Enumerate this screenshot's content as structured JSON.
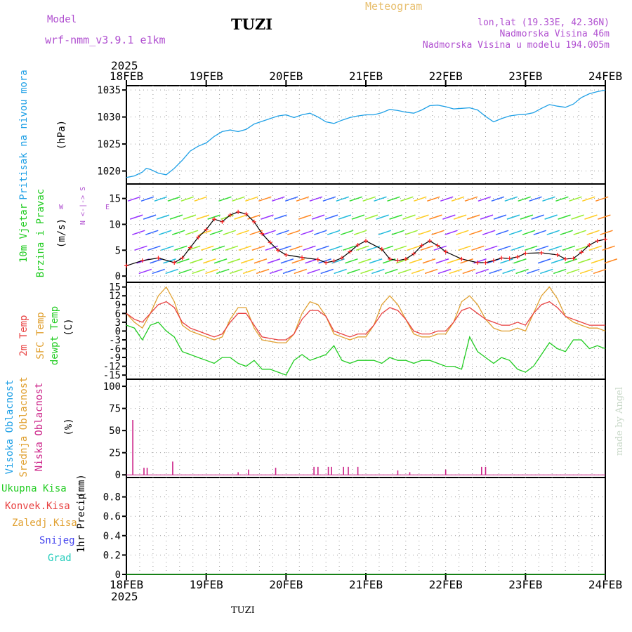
{
  "header": {
    "model_label": "Model",
    "model_name": "wrf-nmm_v3.9.1  e1km",
    "station_title": "TUZI",
    "product_title": "Meteogram",
    "coords": "lon,lat (19.33E, 42.36N)",
    "elevation": "Nadmorska Visina 46m",
    "model_elevation": "Nadmorska Visina u modelu 194.005m",
    "footer_station": "TUZI",
    "credit": "made by Angel"
  },
  "colors": {
    "pressure": "#1fa0e6",
    "temp2m": "#e84040",
    "sfc_temp": "#e0a030",
    "dewpoint": "#22cc22",
    "cloud_low": "#cc2288",
    "wind_cross": "#ff2020",
    "wind_line": "#000000",
    "label_magenta": "#b04fd0"
  },
  "chart_data": [
    {
      "type": "line",
      "panel": "pressure",
      "ylabel_rot": "Pritisak na nivou mora",
      "unit": "(hPa)",
      "x_year": "2025",
      "x_ticks": [
        "18FEB",
        "19FEB",
        "20FEB",
        "21FEB",
        "22FEB",
        "23FEB",
        "24FEB"
      ],
      "y_ticks": [
        1020,
        1025,
        1030,
        1035
      ],
      "ylim": [
        1017.6,
        1035.8
      ],
      "x": [
        0,
        0.1,
        0.2,
        0.25,
        0.3,
        0.4,
        0.5,
        0.6,
        0.7,
        0.8,
        0.9,
        1.0,
        1.1,
        1.2,
        1.3,
        1.4,
        1.5,
        1.6,
        1.7,
        1.8,
        1.9,
        2.0,
        2.1,
        2.2,
        2.3,
        2.4,
        2.5,
        2.6,
        2.7,
        2.8,
        2.9,
        3.0,
        3.1,
        3.2,
        3.3,
        3.4,
        3.5,
        3.6,
        3.7,
        3.8,
        3.9,
        4.0,
        4.1,
        4.2,
        4.3,
        4.4,
        4.5,
        4.6,
        4.7,
        4.8,
        4.9,
        5.0,
        5.1,
        5.2,
        5.3,
        5.4,
        5.5,
        5.6,
        5.7,
        5.8,
        5.9,
        6.0
      ],
      "series": [
        {
          "name": "Pritisak na nivou mora",
          "values": [
            1018.8,
            1019.1,
            1019.8,
            1020.5,
            1020.3,
            1019.6,
            1019.3,
            1020.5,
            1022.0,
            1023.7,
            1024.6,
            1025.2,
            1026.4,
            1027.3,
            1027.6,
            1027.3,
            1027.7,
            1028.7,
            1029.2,
            1029.7,
            1030.2,
            1030.4,
            1029.9,
            1030.4,
            1030.7,
            1030.0,
            1029.1,
            1028.8,
            1029.4,
            1029.9,
            1030.2,
            1030.4,
            1030.4,
            1030.8,
            1031.4,
            1031.2,
            1030.9,
            1030.7,
            1031.3,
            1032.1,
            1032.2,
            1031.9,
            1031.5,
            1031.6,
            1031.7,
            1031.3,
            1030.1,
            1029.1,
            1029.7,
            1030.2,
            1030.4,
            1030.5,
            1030.8,
            1031.6,
            1032.3,
            1032.0,
            1031.8,
            1032.4,
            1033.6,
            1034.3,
            1034.7,
            1035.0
          ]
        }
      ]
    },
    {
      "type": "line",
      "panel": "wind",
      "ylabel_rot_1": "10m Vjetar",
      "ylabel_rot_2": "Brzina i Pravac",
      "unit": "(m/s)",
      "compass_text": "N <-|-> S",
      "compass_w": "W",
      "compass_e": "E",
      "y_ticks": [
        0,
        5,
        10,
        15
      ],
      "ylim": [
        -1.2,
        17.8
      ],
      "x": [
        0,
        0.2,
        0.4,
        0.6,
        0.7,
        0.8,
        0.9,
        1.0,
        1.1,
        1.2,
        1.3,
        1.4,
        1.5,
        1.6,
        1.7,
        1.8,
        1.9,
        2.0,
        2.2,
        2.4,
        2.5,
        2.6,
        2.7,
        2.8,
        2.9,
        3.0,
        3.2,
        3.3,
        3.4,
        3.5,
        3.6,
        3.7,
        3.8,
        3.9,
        4.0,
        4.2,
        4.4,
        4.5,
        4.6,
        4.7,
        4.8,
        4.9,
        5.0,
        5.2,
        5.4,
        5.5,
        5.6,
        5.7,
        5.8,
        5.9,
        6.0
      ],
      "series": [
        {
          "name": "brzina",
          "values": [
            2.0,
            3.0,
            3.5,
            2.6,
            3.5,
            5.5,
            7.5,
            9.0,
            11.0,
            10.5,
            11.8,
            12.4,
            12.0,
            10.5,
            8.2,
            6.5,
            5.0,
            4.1,
            3.6,
            3.2,
            2.6,
            2.9,
            3.5,
            4.7,
            6.0,
            6.8,
            5.2,
            3.3,
            3.0,
            3.3,
            4.3,
            5.9,
            6.8,
            5.9,
            4.7,
            3.3,
            2.6,
            2.6,
            3.0,
            3.5,
            3.4,
            3.7,
            4.4,
            4.5,
            4.1,
            3.3,
            3.4,
            4.6,
            6.0,
            6.8,
            7.1
          ]
        }
      ]
    },
    {
      "type": "line",
      "panel": "temperature",
      "ylabel_rot_1": "2m Temp",
      "ylabel_rot_2": "SFC Temp",
      "ylabel_rot_3": "dewpt Temp",
      "unit": "(C)",
      "y_ticks": [
        -15,
        -12,
        -9,
        -6,
        -3,
        0,
        3,
        6,
        9,
        12,
        15
      ],
      "ylim": [
        -16.4,
        16.6
      ],
      "x": [
        0,
        0.1,
        0.2,
        0.3,
        0.4,
        0.5,
        0.6,
        0.7,
        0.8,
        0.9,
        1.0,
        1.1,
        1.2,
        1.3,
        1.4,
        1.5,
        1.6,
        1.7,
        1.8,
        1.9,
        2.0,
        2.1,
        2.2,
        2.3,
        2.4,
        2.5,
        2.6,
        2.7,
        2.8,
        2.9,
        3.0,
        3.1,
        3.2,
        3.3,
        3.4,
        3.5,
        3.6,
        3.7,
        3.8,
        3.9,
        4.0,
        4.1,
        4.2,
        4.3,
        4.4,
        4.5,
        4.6,
        4.7,
        4.8,
        4.9,
        5.0,
        5.1,
        5.2,
        5.3,
        5.4,
        5.5,
        5.6,
        5.7,
        5.8,
        5.9,
        6.0
      ],
      "series": [
        {
          "name": "2m Temp",
          "values": [
            6,
            4,
            3,
            6,
            9,
            10,
            8,
            3,
            1,
            0,
            -1,
            -2,
            -1,
            3,
            6,
            6,
            2,
            -2,
            -2.5,
            -3,
            -3,
            -1,
            4,
            7,
            7,
            5,
            0,
            -1,
            -2,
            -1,
            -1,
            2,
            6,
            8,
            7,
            4,
            0,
            -1,
            -1,
            0,
            0,
            3,
            7,
            8,
            6,
            4,
            3,
            2,
            2,
            3,
            2,
            6,
            9,
            10,
            8,
            5,
            4,
            3,
            2,
            2,
            2
          ]
        },
        {
          "name": "SFC Temp",
          "values": [
            6,
            3,
            1,
            6,
            12,
            15,
            10,
            2,
            0,
            -1,
            -2,
            -3,
            -2,
            4,
            8,
            8,
            1,
            -3,
            -3.5,
            -4,
            -4,
            -1,
            6,
            10,
            9,
            5,
            -1,
            -2,
            -3,
            -2,
            -2,
            2,
            9,
            12,
            9,
            4,
            -1,
            -2,
            -2,
            -1,
            -1,
            3,
            10,
            12,
            9,
            4,
            1,
            0,
            0,
            1,
            0,
            6,
            12,
            15,
            11,
            5,
            3,
            2,
            1,
            1,
            0
          ]
        },
        {
          "name": "dewpt Temp",
          "values": [
            2,
            1,
            -3,
            2,
            3,
            0,
            -2,
            -7,
            -8,
            -9,
            -10,
            -11,
            -9,
            -9,
            -11,
            -12,
            -10,
            -13,
            -13,
            -14,
            -15,
            -10,
            -8,
            -10,
            -9,
            -8,
            -5,
            -10,
            -11,
            -10,
            -10,
            -10,
            -11,
            -9,
            -10,
            -10,
            -11,
            -10,
            -10,
            -11,
            -12,
            -12,
            -13,
            -2,
            -7,
            -9,
            -11,
            -9,
            -10,
            -13,
            -14,
            -12,
            -8,
            -4,
            -6,
            -7,
            -3,
            -3,
            -6,
            -5,
            -6
          ]
        }
      ]
    },
    {
      "type": "bar",
      "panel": "clouds",
      "ylabel_rot_1": "Visoka Oblacnost",
      "ylabel_rot_2": "Srednja Oblacnost",
      "ylabel_rot_3": "Niska Oblacnost",
      "unit": "(%)",
      "y_ticks": [
        0,
        25,
        50,
        75,
        100
      ],
      "ylim": [
        -3,
        108
      ],
      "x": [
        0.08,
        0.22,
        0.26,
        0.58,
        1.4,
        1.53,
        1.87,
        2.35,
        2.4,
        2.53,
        2.57,
        2.72,
        2.78,
        2.9,
        3.4,
        3.55,
        4.0,
        4.45,
        4.5
      ],
      "series": [
        {
          "name": "Niska Oblacnost",
          "values": [
            62,
            8,
            8,
            15,
            3,
            6,
            8,
            9,
            9,
            9,
            9,
            9,
            9,
            9,
            5,
            3,
            6,
            9,
            9
          ]
        }
      ]
    },
    {
      "type": "line",
      "panel": "precip",
      "legend": [
        "Ukupna Kisa",
        "Konvek.Kisa",
        "Zaledj.Kisa",
        "Snijeg",
        "Grad"
      ],
      "ylabel_rot_1": "1hr Precip",
      "unit": "(mm)",
      "y_ticks": [
        0,
        0.2,
        0.4,
        0.6,
        0.8
      ],
      "ylim": [
        0,
        1.0
      ],
      "x_year": "2025",
      "x_ticks": [
        "18FEB",
        "19FEB",
        "20FEB",
        "21FEB",
        "22FEB",
        "23FEB",
        "24FEB"
      ],
      "series": [
        {
          "name": "Ukupna Kisa",
          "values": [
            0,
            0,
            0,
            0,
            0,
            0,
            0
          ]
        }
      ]
    }
  ]
}
